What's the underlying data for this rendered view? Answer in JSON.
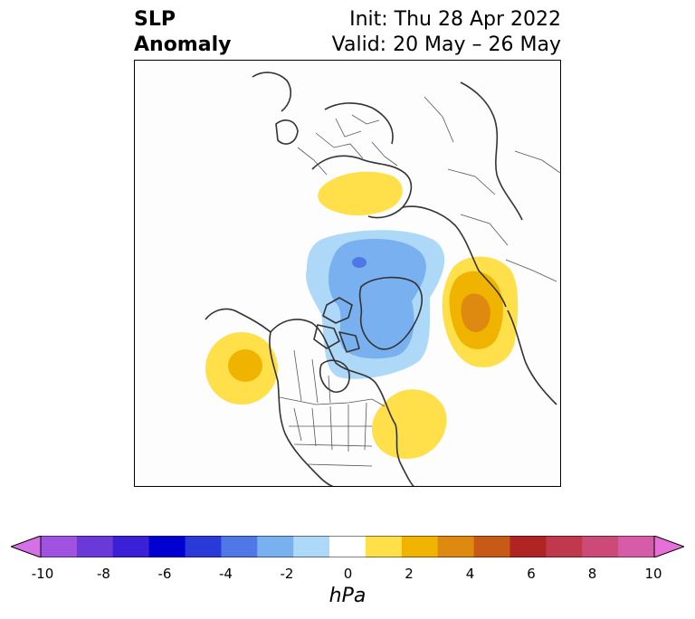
{
  "title": {
    "left_line1": "SLP",
    "left_line2": "Anomaly",
    "right_line1": "Init: Thu 28 Apr 2022",
    "right_line2": "Valid: 20 May – 26 May"
  },
  "map": {
    "projection": "north-polar-stereographic",
    "features": [
      "coastlines",
      "country-borders",
      "us-state-borders",
      "canadian-province-borders"
    ]
  },
  "anomaly_regions": [
    {
      "name": "Scandinavia / Northern Europe",
      "sign": "positive",
      "max_hpa": 2
    },
    {
      "name": "Arctic / Greenland",
      "sign": "negative",
      "min_hpa": -4
    },
    {
      "name": "Northwest Pacific / Kamchatka",
      "sign": "positive",
      "max_hpa": 4
    },
    {
      "name": "Northeast Pacific off North America west coast",
      "sign": "positive",
      "max_hpa": 2
    },
    {
      "name": "Western North Atlantic off US east coast",
      "sign": "positive",
      "max_hpa": 1
    }
  ],
  "colorbar": {
    "unit": "hPa",
    "extend": "both",
    "ticks": [
      "-10",
      "-8",
      "-6",
      "-4",
      "-2",
      "0",
      "2",
      "4",
      "6",
      "8",
      "10"
    ],
    "colors": [
      "#d670e6",
      "#a053e0",
      "#6a3ad8",
      "#3a20d6",
      "#0000d0",
      "#2a3ad8",
      "#4f77e6",
      "#78b0f0",
      "#aed8f7",
      "#ffffff",
      "#ffe04b",
      "#f0b400",
      "#de8a10",
      "#c85a18",
      "#b02424",
      "#c0384c",
      "#cc4a78",
      "#d65ca8",
      "#e670d8"
    ]
  }
}
